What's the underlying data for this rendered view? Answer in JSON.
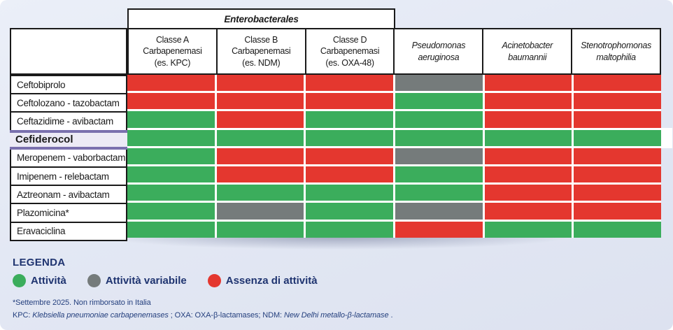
{
  "colors": {
    "activity": "#3BAD5C",
    "variable": "#757B7B",
    "no_activity": "#E4372F",
    "purple_accent": "#7A70AE",
    "navy_text": "#1F3470"
  },
  "chart_data": {
    "type": "heatmap",
    "group_header": "Enterobacterales",
    "group_header_span_columns": [
      1,
      2,
      3
    ],
    "legend_position": "bottom-left",
    "columns": [
      {
        "label": "Classe A\nCarbapenemasi\n(es. KPC)",
        "italic": false
      },
      {
        "label": "Classe B\nCarbapenemasi\n(es. NDM)",
        "italic": false
      },
      {
        "label": "Classe D\nCarbapenemasi\n(es. OXA-48)",
        "italic": false
      },
      {
        "label": "Pseudomonas\naeruginosa",
        "italic": true
      },
      {
        "label": "Acinetobacter\nbaumannii",
        "italic": true
      },
      {
        "label": "Stenotrophomonas\nmaltophilia",
        "italic": true
      }
    ],
    "rows": [
      {
        "label": "Ceftobiprolo",
        "highlight": false,
        "cells": [
          "no_activity",
          "no_activity",
          "no_activity",
          "variable",
          "no_activity",
          "no_activity"
        ]
      },
      {
        "label": "Ceftolozano - tazobactam",
        "highlight": false,
        "cells": [
          "no_activity",
          "no_activity",
          "no_activity",
          "activity",
          "no_activity",
          "no_activity"
        ]
      },
      {
        "label": "Ceftazidime - avibactam",
        "highlight": false,
        "cells": [
          "activity",
          "no_activity",
          "activity",
          "activity",
          "no_activity",
          "no_activity"
        ]
      },
      {
        "label": "Cefiderocol",
        "highlight": true,
        "cells": [
          "activity",
          "activity",
          "activity",
          "activity",
          "activity",
          "activity"
        ]
      },
      {
        "label": "Meropenem - vaborbactam",
        "highlight": false,
        "cells": [
          "activity",
          "no_activity",
          "no_activity",
          "variable",
          "no_activity",
          "no_activity"
        ]
      },
      {
        "label": "Imipenem - relebactam",
        "highlight": false,
        "cells": [
          "activity",
          "no_activity",
          "no_activity",
          "activity",
          "no_activity",
          "no_activity"
        ]
      },
      {
        "label": "Aztreonam - avibactam",
        "highlight": false,
        "cells": [
          "activity",
          "activity",
          "activity",
          "activity",
          "no_activity",
          "no_activity"
        ]
      },
      {
        "label": "Plazomicina*",
        "highlight": false,
        "cells": [
          "activity",
          "variable",
          "activity",
          "variable",
          "no_activity",
          "no_activity"
        ]
      },
      {
        "label": "Eravaciclina",
        "highlight": false,
        "cells": [
          "activity",
          "activity",
          "activity",
          "no_activity",
          "activity",
          "activity"
        ]
      }
    ]
  },
  "legend": {
    "title": "LEGENDA",
    "items": [
      {
        "label": "Attività",
        "key": "activity"
      },
      {
        "label": "Attività variabile",
        "key": "variable"
      },
      {
        "label": "Assenza di attività",
        "key": "no_activity"
      }
    ]
  },
  "footnotes": {
    "line1": "*Settembre 2025. Non rimborsato in Italia",
    "line2_segments": [
      {
        "text": "KPC: ",
        "italic": false
      },
      {
        "text": "Klebsiella pneumoniae carbapenemases",
        "italic": true
      },
      {
        "text": " ;  OXA: OXA-β-lactamases; NDM: ",
        "italic": false
      },
      {
        "text": "New Delhi metallo-β-lactamase",
        "italic": true
      },
      {
        "text": " .",
        "italic": false
      }
    ]
  }
}
